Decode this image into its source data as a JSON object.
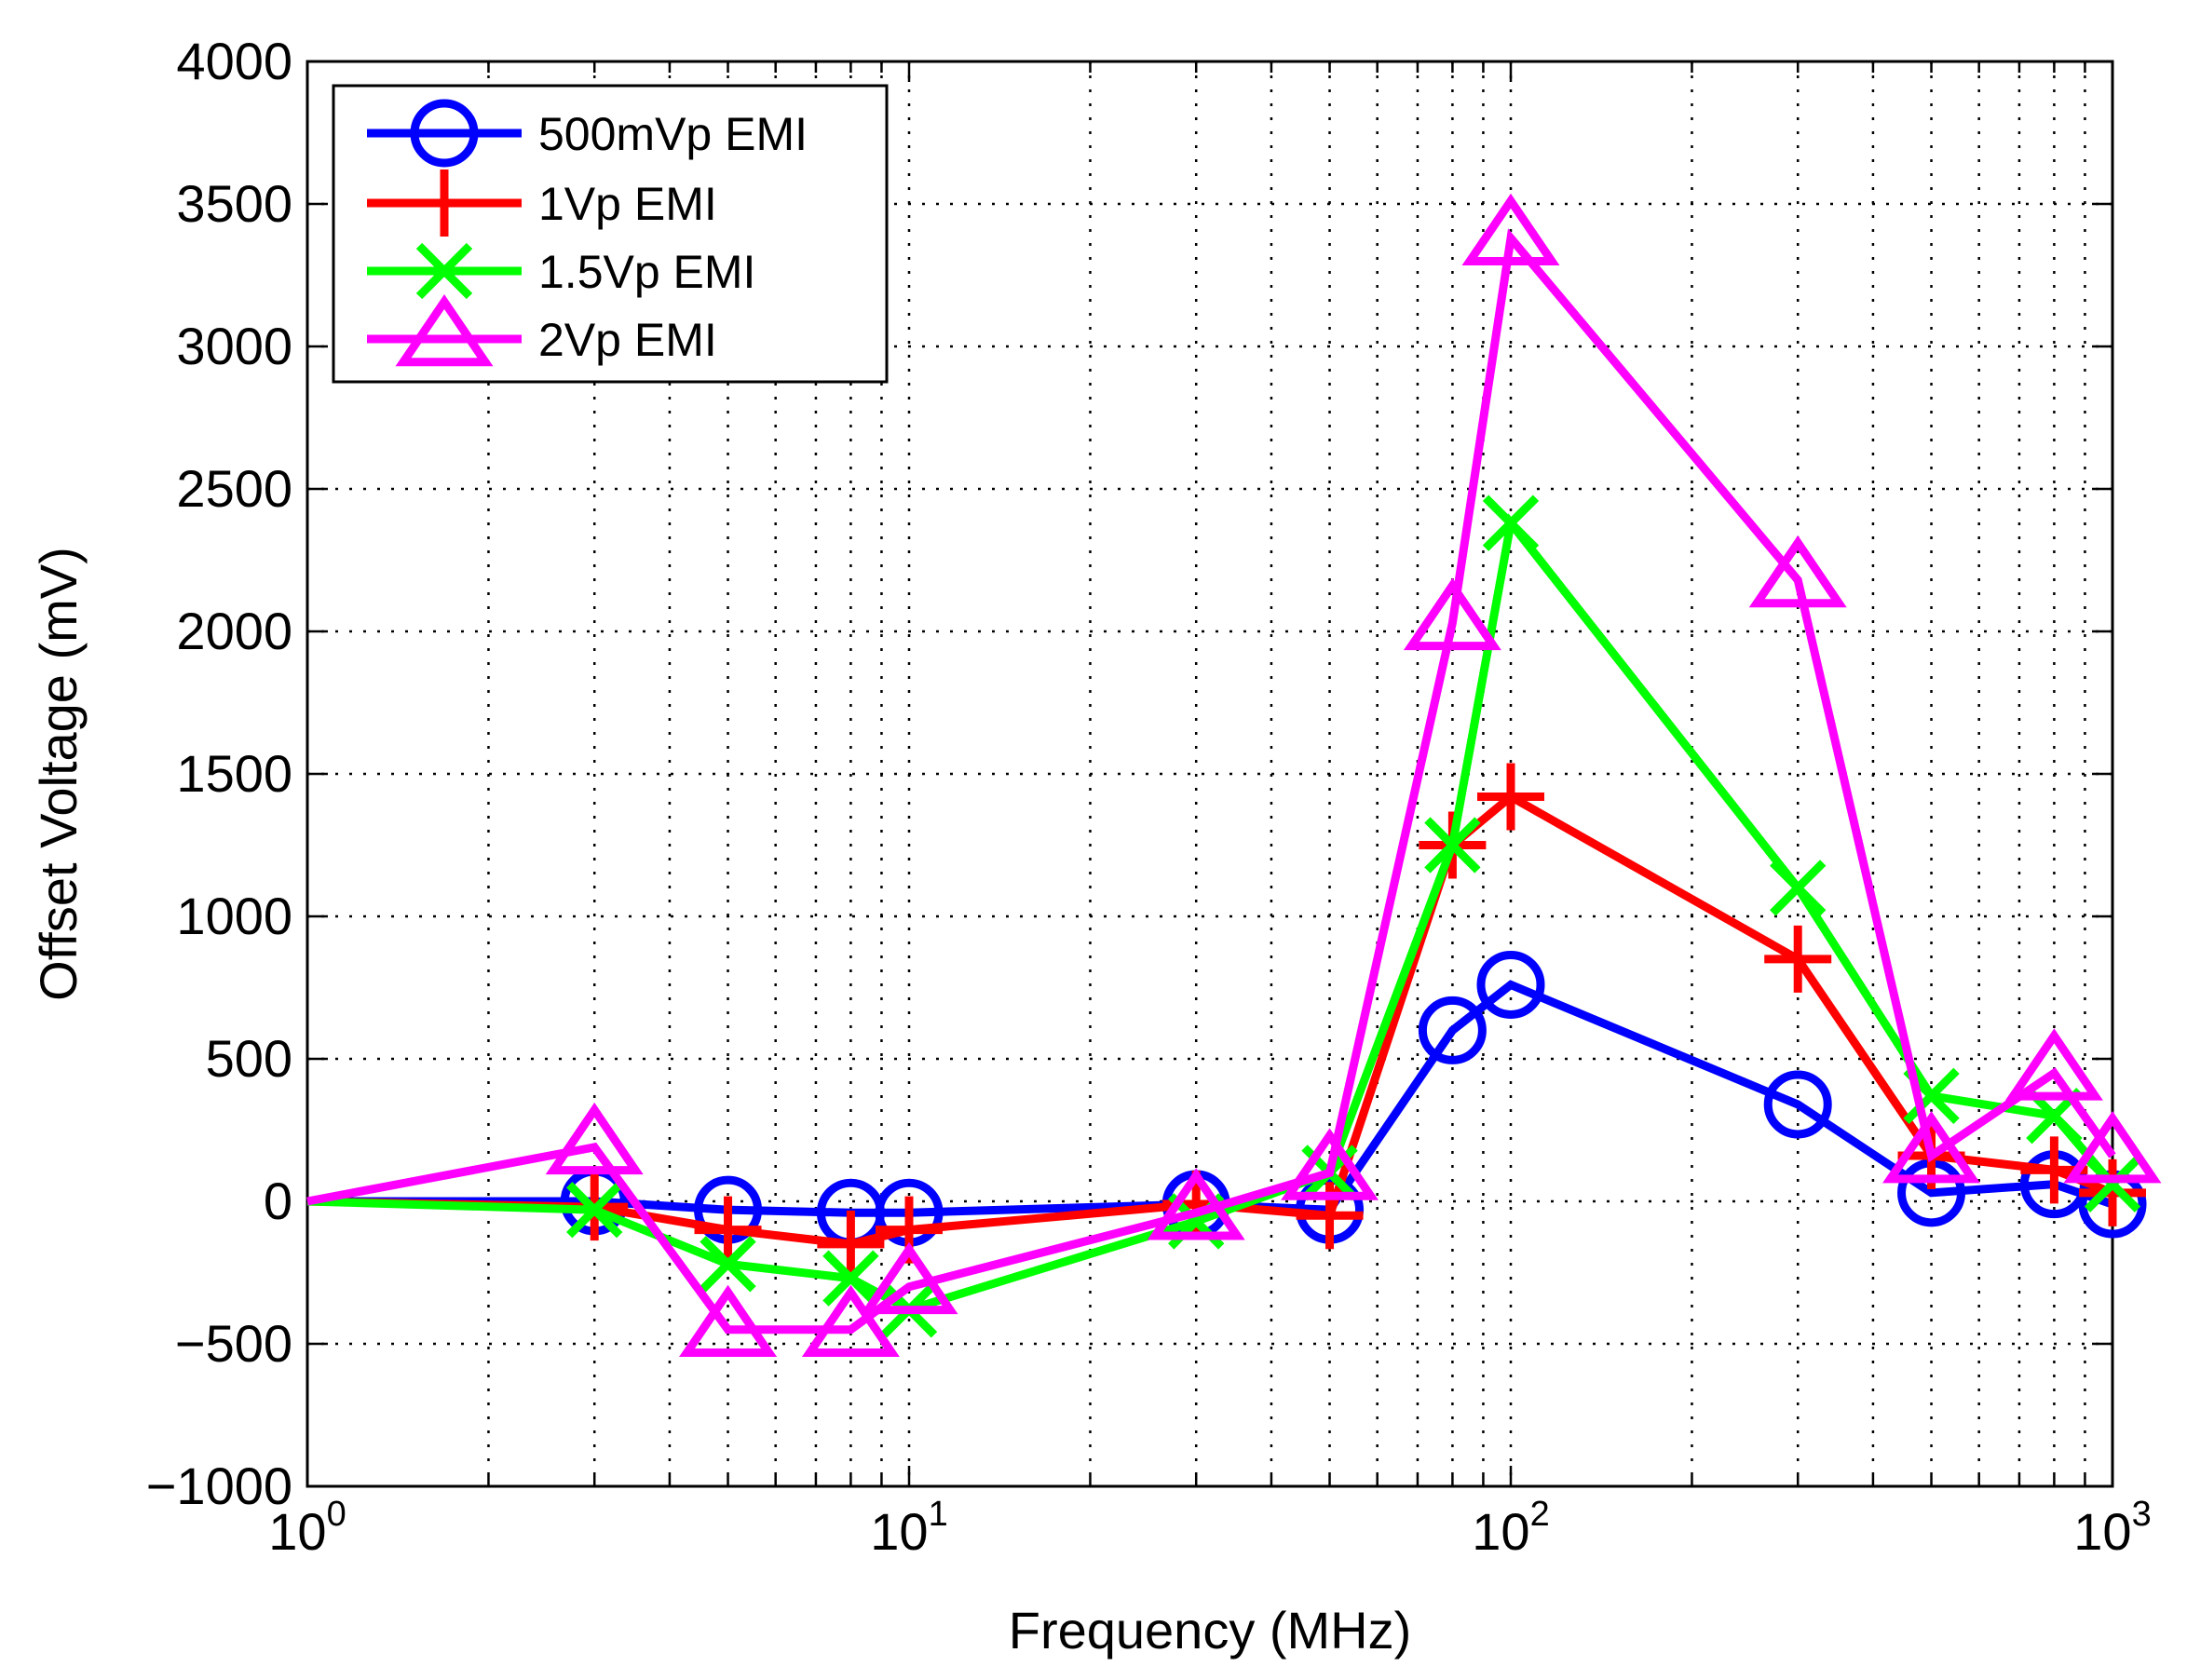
{
  "chart_data": {
    "type": "line",
    "title": "",
    "xlabel": "Frequency (MHz)",
    "ylabel": "Offset Voltage (mV)",
    "x_scale": "log",
    "xlim": [
      1,
      1000
    ],
    "ylim": [
      -1000,
      4000
    ],
    "x_ticks": [
      {
        "value": 1,
        "base": "10",
        "exp": "0"
      },
      {
        "value": 10,
        "base": "10",
        "exp": "1"
      },
      {
        "value": 100,
        "base": "10",
        "exp": "2"
      },
      {
        "value": 1000,
        "base": "10",
        "exp": "3"
      }
    ],
    "y_ticks": [
      {
        "value": -1000,
        "label": "−1000"
      },
      {
        "value": -500,
        "label": "−500"
      },
      {
        "value": 0,
        "label": "0"
      },
      {
        "value": 500,
        "label": "500"
      },
      {
        "value": 1000,
        "label": "1000"
      },
      {
        "value": 1500,
        "label": "1500"
      },
      {
        "value": 2000,
        "label": "2000"
      },
      {
        "value": 2500,
        "label": "2500"
      },
      {
        "value": 3000,
        "label": "3000"
      },
      {
        "value": 3500,
        "label": "3500"
      },
      {
        "value": 4000,
        "label": "4000"
      }
    ],
    "grid": true,
    "legend_position": "top-left",
    "x": [
      1,
      3,
      5,
      8,
      10,
      30,
      50,
      80,
      100,
      300,
      500,
      800,
      1000
    ],
    "series": [
      {
        "name": "500mVp EMI",
        "color": "#0000ff",
        "marker": "circle",
        "values": [
          0,
          0,
          -30,
          -40,
          -40,
          -10,
          -30,
          600,
          760,
          340,
          30,
          60,
          -10
        ]
      },
      {
        "name": "1Vp EMI",
        "color": "#ff0000",
        "marker": "plus",
        "values": [
          0,
          -20,
          -100,
          -150,
          -100,
          -10,
          -50,
          1250,
          1420,
          850,
          160,
          110,
          30
        ]
      },
      {
        "name": "1.5Vp EMI",
        "color": "#00ff00",
        "marker": "x",
        "values": [
          0,
          -30,
          -220,
          -270,
          -380,
          -70,
          100,
          1250,
          2380,
          1100,
          370,
          300,
          60
        ]
      },
      {
        "name": "2Vp EMI",
        "color": "#ff00ff",
        "marker": "triangle",
        "values": [
          0,
          190,
          -450,
          -450,
          -300,
          -40,
          100,
          2030,
          3380,
          2180,
          160,
          450,
          160
        ]
      }
    ]
  }
}
